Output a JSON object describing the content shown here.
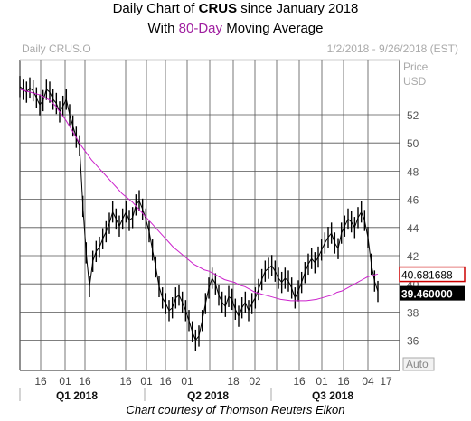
{
  "title": {
    "prefix": "Daily Chart of ",
    "ticker": "CRUS",
    "suffix": " since January 2018",
    "line2_prefix": "With ",
    "line2_highlight": "80-Day",
    "line2_suffix": " Moving Average"
  },
  "footer": "Chart courtesy of Thomson Reuters Eikon",
  "colors": {
    "price": "#000000",
    "ma": "#cc22cc",
    "grid": "#555555",
    "header_text": "#aaaaaa"
  },
  "chart_data": {
    "type": "line",
    "symbol_label": "Daily CRUS.O",
    "date_range_label": "1/2/2018 - 9/26/2018 (EST)",
    "price_axis_title": [
      "Price",
      "USD"
    ],
    "y_ticks": [
      "52",
      "50",
      "48",
      "46",
      "44",
      "42",
      "40",
      "38",
      "36"
    ],
    "ylim": [
      35.0,
      55.0
    ],
    "x_tick_labels": [
      "16",
      "01",
      "16",
      "16",
      "01",
      "16",
      "01",
      "18",
      "02",
      "16",
      "01",
      "16",
      "04",
      "17"
    ],
    "period_labels": [
      "Q1 2018",
      "Q2 2018",
      "Q3 2018"
    ],
    "auto_label": "Auto",
    "series": [
      {
        "label": "40.681688",
        "last_value": 40.681688,
        "values": [
          53.8,
          53.7,
          53.6,
          53.5,
          53.4,
          53.2,
          53.0,
          52.6,
          52.1,
          51.6,
          51.0,
          50.4,
          49.8,
          49.3,
          48.8,
          48.4,
          48.0,
          47.6,
          47.2,
          46.8,
          46.4,
          46.1,
          45.8,
          45.4,
          45.0,
          44.6,
          44.2,
          43.8,
          43.4,
          43.0,
          42.6,
          42.3,
          42.0,
          41.7,
          41.4,
          41.2,
          41.0,
          40.9,
          40.7,
          40.5,
          40.3,
          40.2,
          40.1,
          39.9,
          39.8,
          39.6,
          39.4,
          39.3,
          39.2,
          39.1,
          39.0,
          38.9,
          38.85,
          38.8,
          38.8,
          38.8,
          38.8,
          38.85,
          38.9,
          39.0,
          39.1,
          39.2,
          39.4,
          39.5,
          39.7,
          39.9,
          40.1,
          40.3,
          40.5,
          40.6,
          40.7
        ]
      },
      {
        "label": "39.460000",
        "last_value": 39.46,
        "values": [
          54.0,
          53.8,
          53.6,
          53.9,
          53.7,
          53.2,
          52.7,
          53.0,
          53.8,
          53.6,
          53.1,
          52.8,
          52.2,
          52.6,
          53.1,
          52.0,
          51.2,
          50.4,
          49.8,
          45.5,
          42.2,
          39.8,
          41.6,
          42.3,
          42.6,
          43.2,
          43.7,
          44.3,
          45.1,
          44.6,
          44.1,
          44.6,
          45.1,
          44.5,
          44.7,
          45.6,
          45.9,
          45.3,
          44.6,
          43.7,
          42.4,
          41.2,
          39.8,
          39.0,
          38.6,
          38.1,
          38.3,
          39.0,
          39.2,
          38.7,
          38.1,
          37.4,
          36.6,
          36.0,
          36.3,
          37.4,
          38.6,
          39.7,
          40.4,
          40.0,
          39.2,
          38.7,
          38.4,
          39.1,
          38.9,
          38.2,
          37.7,
          38.3,
          38.7,
          38.1,
          38.6,
          39.0,
          39.6,
          40.3,
          40.9,
          41.1,
          41.3,
          40.9,
          40.4,
          40.1,
          40.4,
          40.2,
          39.7,
          39.0,
          39.5,
          40.1,
          40.8,
          41.4,
          41.8,
          41.5,
          41.9,
          42.4,
          42.9,
          43.3,
          43.6,
          42.9,
          42.5,
          43.6,
          44.1,
          44.6,
          44.4,
          44.0,
          44.7,
          45.1,
          44.5,
          43.3,
          41.4,
          40.2,
          39.46
        ]
      }
    ]
  }
}
